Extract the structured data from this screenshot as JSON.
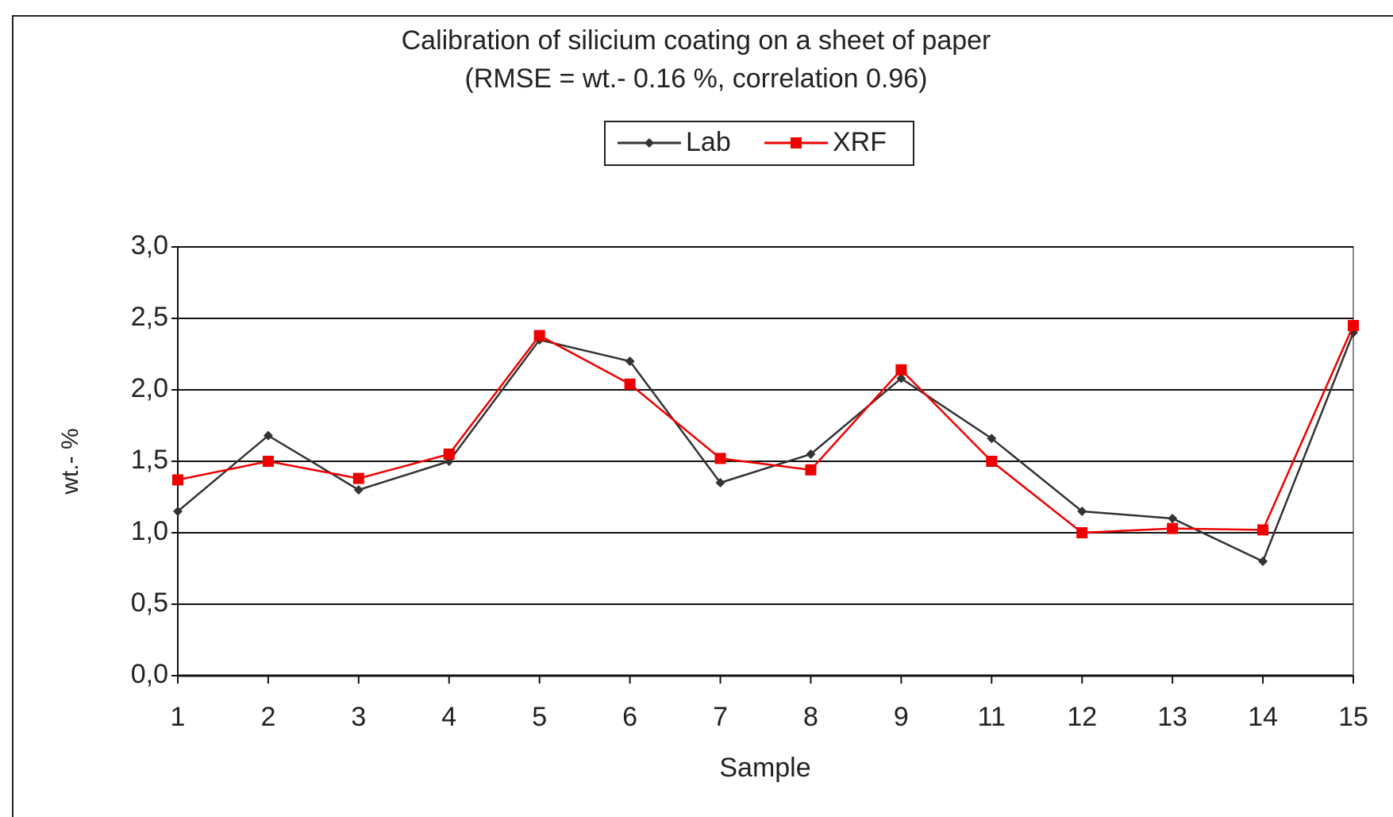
{
  "chart_data": {
    "type": "line",
    "title": "Calibration of silicium coating on a sheet of paper",
    "subtitle": "(RMSE = wt.- 0.16 %, correlation 0.96)",
    "xlabel": "Sample",
    "ylabel": "wt.- %",
    "categories": [
      "1",
      "2",
      "3",
      "4",
      "5",
      "6",
      "7",
      "8",
      "9",
      "11",
      "12",
      "13",
      "14",
      "15"
    ],
    "series": [
      {
        "name": "Lab",
        "color": "#333333",
        "marker": "diamond",
        "values": [
          1.15,
          1.68,
          1.3,
          1.5,
          2.35,
          2.2,
          1.35,
          1.55,
          2.08,
          1.66,
          1.15,
          1.1,
          0.8,
          2.4
        ]
      },
      {
        "name": "XRF",
        "color": "#ee0000",
        "marker": "square",
        "values": [
          1.37,
          1.5,
          1.38,
          1.55,
          2.38,
          2.04,
          1.52,
          1.44,
          2.14,
          1.5,
          1.0,
          1.03,
          1.02,
          2.45
        ]
      }
    ],
    "ylim": [
      0,
      3
    ],
    "yticks": [
      {
        "value": 0,
        "label": "0,0"
      },
      {
        "value": 0.5,
        "label": "0,5"
      },
      {
        "value": 1,
        "label": "1,0"
      },
      {
        "value": 1.5,
        "label": "1,5"
      },
      {
        "value": 2,
        "label": "2,0"
      },
      {
        "value": 2.5,
        "label": "2,5"
      },
      {
        "value": 3,
        "label": "3,0"
      }
    ],
    "grid": true,
    "legend": "top"
  }
}
